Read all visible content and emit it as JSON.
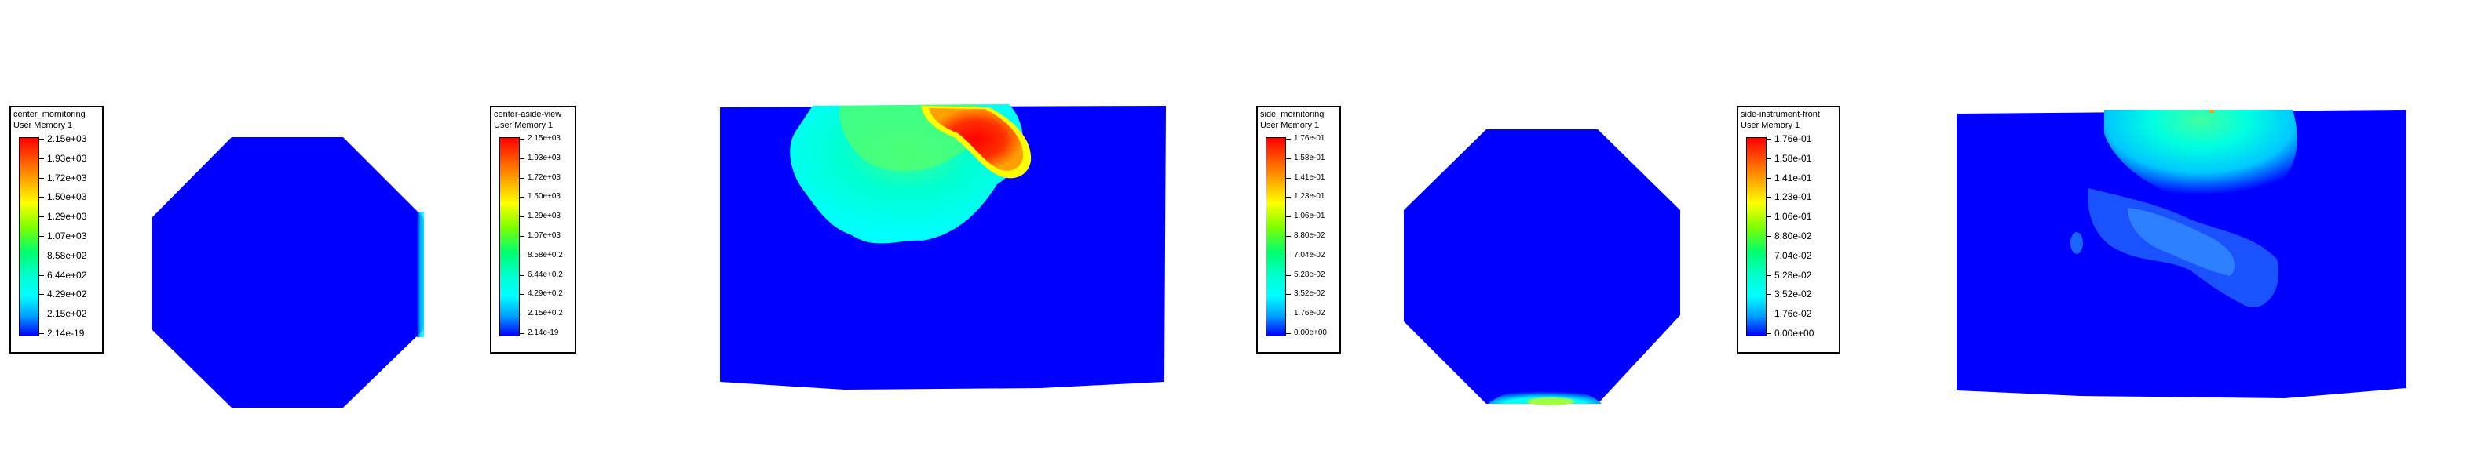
{
  "colors": {
    "min": "#0000ff",
    "max": "#ff0000",
    "mid_cyan": "#00ffff",
    "mid_green": "#7fff00"
  },
  "legends": [
    {
      "title": "center_mornitoring",
      "subtitle": "User Memory 1",
      "labels": [
        "2.15e+03",
        "1.93e+03",
        "1.72e+03",
        "1.50e+03",
        "1.29e+03",
        "1.07e+03",
        "8.58e+02",
        "6.44e+02",
        "4.29e+02",
        "2.15e+02",
        "2.14e-19"
      ]
    },
    {
      "title": "center-aside-view",
      "subtitle": "User Memory 1",
      "labels": [
        "2.15e+03",
        "1.93e+03",
        "1.72e+03",
        "1.50e+03",
        "1.29e+03",
        "1.07e+03",
        "8.58e+0.2",
        "6.44e+0.2",
        "4.29e+0.2",
        "2.15e+0.2",
        "2.14e-19"
      ]
    },
    {
      "title": "side_mornitoring",
      "subtitle": "User Memory 1",
      "labels": [
        "1.76e-01",
        "1.58e-01",
        "1.41e-01",
        "1.23e-01",
        "1.06e-01",
        "8.80e-02",
        "7.04e-02",
        "5.28e-02",
        "3.52e-02",
        "1.76e-02",
        "0.00e+00"
      ]
    },
    {
      "title": "side-instrument-front",
      "subtitle": "User Memory 1",
      "labels": [
        "1.76e-01",
        "1.58e-01",
        "1.41e-01",
        "1.23e-01",
        "1.06e-01",
        "8.80e-02",
        "7.04e-02",
        "5.28e-02",
        "3.52e-02",
        "1.76e-02",
        "0.00e+00"
      ]
    }
  ]
}
